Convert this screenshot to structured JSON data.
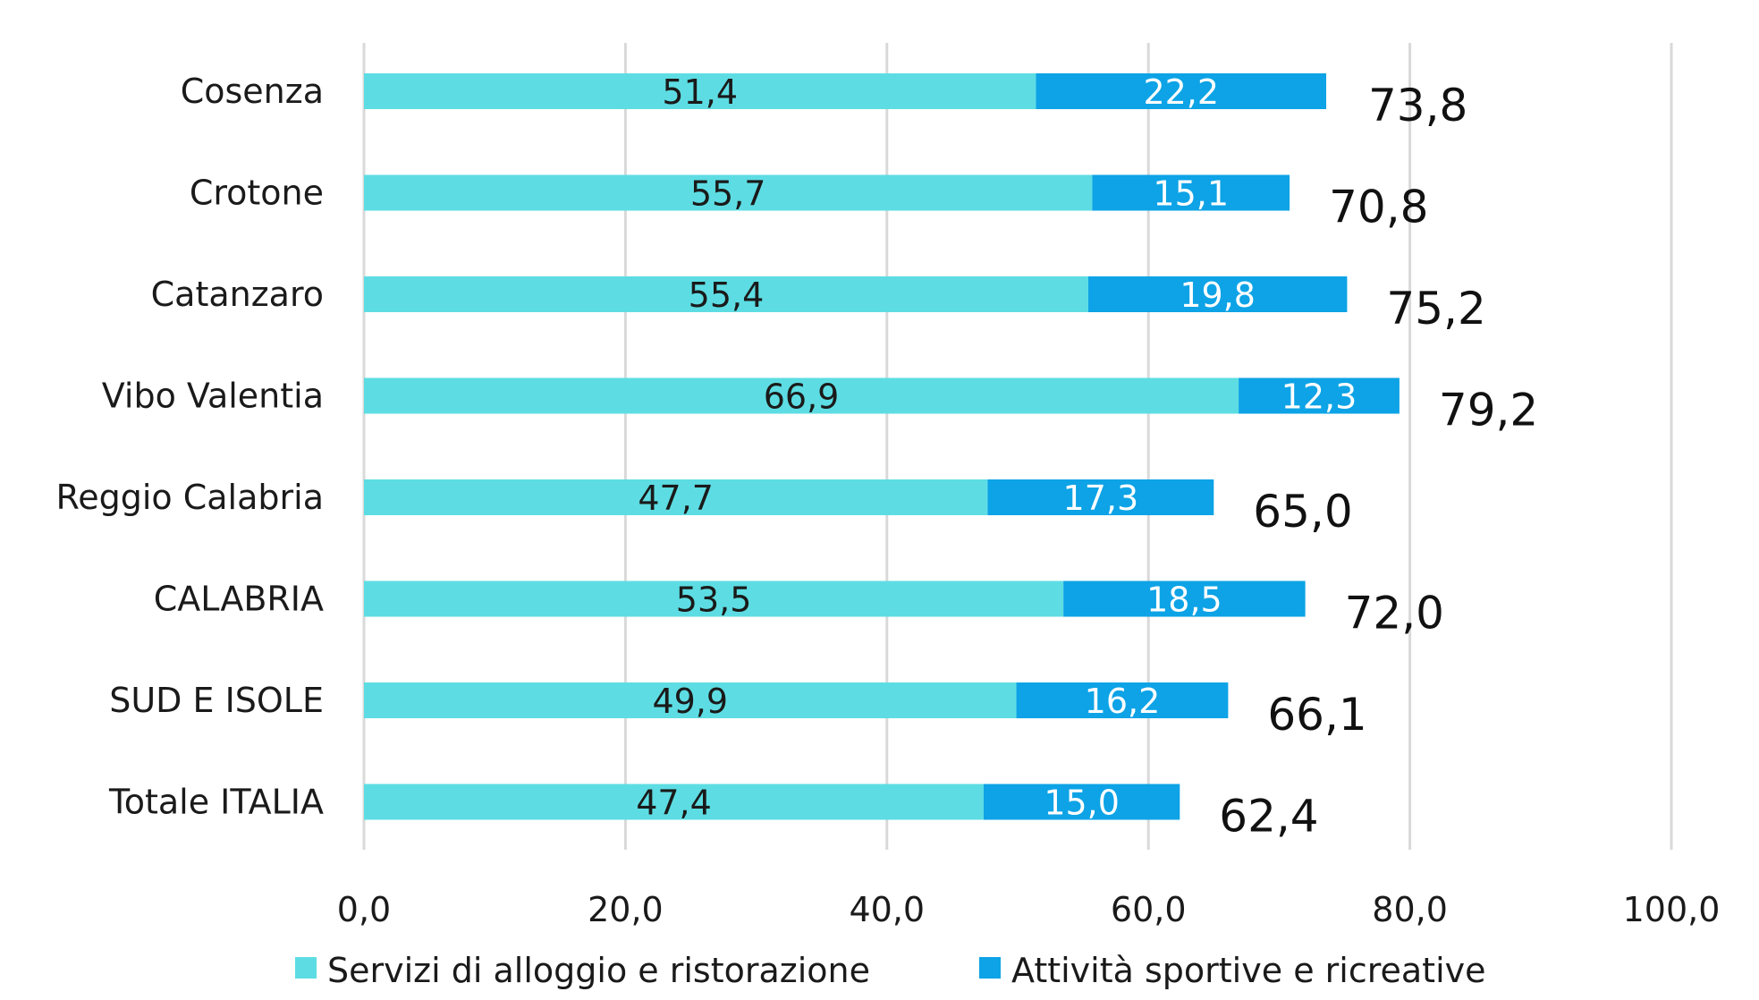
{
  "chart_data": {
    "type": "bar",
    "orientation": "horizontal",
    "stacked": true,
    "title": "",
    "xlabel": "",
    "ylabel": "",
    "xlim": [
      0,
      100
    ],
    "x_ticks": [
      "0,0",
      "20,0",
      "40,0",
      "60,0",
      "80,0",
      "100,0"
    ],
    "grid": true,
    "legend_position": "bottom",
    "categories": [
      "Cosenza",
      "Crotone",
      "Catanzaro",
      "Vibo Valentia",
      "Reggio Calabria",
      "CALABRIA",
      "SUD E ISOLE",
      "Totale ITALIA"
    ],
    "series": [
      {
        "name": "Servizi di alloggio e ristorazione",
        "color": "#5ddde3",
        "values": [
          51.4,
          55.7,
          55.4,
          66.9,
          47.7,
          53.5,
          49.9,
          47.4
        ],
        "labels": [
          "51,4",
          "55,7",
          "55,4",
          "66,9",
          "47,7",
          "53,5",
          "49,9",
          "47,4"
        ]
      },
      {
        "name": "Attività sportive e ricreative",
        "color": "#0da3e6",
        "values": [
          22.2,
          15.1,
          19.8,
          12.3,
          17.3,
          18.5,
          16.2,
          15.0
        ],
        "labels": [
          "22,2",
          "15,1",
          "19,8",
          "12,3",
          "17,3",
          "18,5",
          "16,2",
          "15,0"
        ]
      }
    ],
    "totals": [
      73.8,
      70.8,
      75.2,
      79.2,
      65.0,
      72.0,
      66.1,
      62.4
    ],
    "total_labels": [
      "73,8",
      "70,8",
      "75,2",
      "79,2",
      "65,0",
      "72,0",
      "66,1",
      "62,4"
    ]
  }
}
